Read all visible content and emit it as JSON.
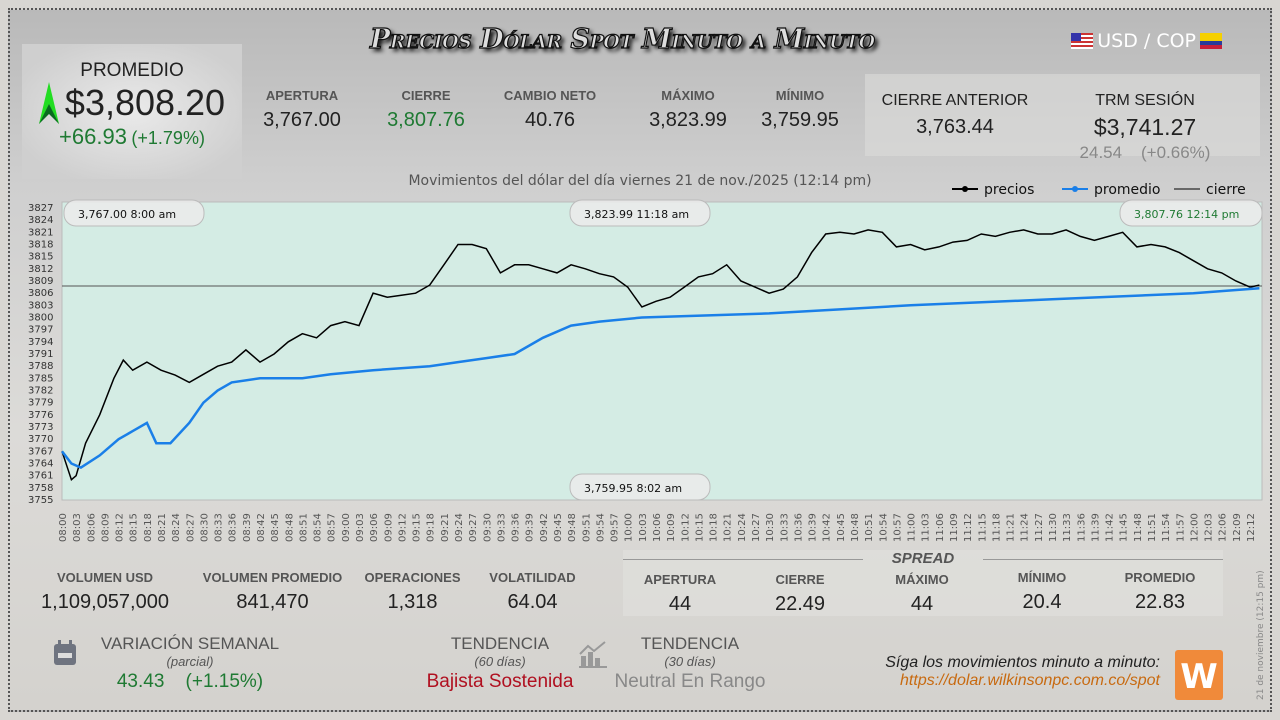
{
  "header": {
    "title": "Precios Dólar Spot Minuto a Minuto",
    "pair": "USD / COP",
    "flag_left": "us-flag-icon",
    "flag_right": "colombia-flag-icon"
  },
  "promedio": {
    "label": "PROMEDIO",
    "value": "$3,808.20",
    "change": "+66.93",
    "change_pct": "(+1.79%)",
    "icon": "arrow-up-icon",
    "color": "#1f7a33"
  },
  "stats": [
    {
      "label": "APERTURA",
      "value": "3,767.00"
    },
    {
      "label": "CIERRE",
      "value": "3,807.76"
    },
    {
      "label": "CAMBIO NETO",
      "value": "40.76"
    },
    {
      "label": "MÁXIMO",
      "value": "3,823.99"
    },
    {
      "label": "MÍNIMO",
      "value": "3,759.95"
    }
  ],
  "cierre_anterior": {
    "label": "CIERRE ANTERIOR",
    "value": "3,763.44"
  },
  "trm": {
    "label": "TRM SESIÓN",
    "value": "$3,741.27",
    "change": "24.54",
    "change_pct": "(+0.66%)"
  },
  "chart_data": {
    "type": "line",
    "subtitle": "Movimientos del dólar del día viernes 21 de nov./2025 (12:14 pm)",
    "legend": [
      "precios",
      "promedio",
      "cierre"
    ],
    "legend_position": "top-right",
    "colors": {
      "precios": "#000000",
      "promedio": "#1a7fe8",
      "cierre": "#000000",
      "fill": "#d4ece4"
    },
    "ylim": [
      3755,
      3827
    ],
    "yticks": [
      3755,
      3758,
      3761,
      3764,
      3767,
      3770,
      3773,
      3776,
      3779,
      3782,
      3785,
      3788,
      3791,
      3794,
      3797,
      3800,
      3803,
      3806,
      3809,
      3812,
      3815,
      3818,
      3821,
      3824,
      3827
    ],
    "xlim": [
      "08:00",
      "12:14"
    ],
    "series": [
      {
        "name": "precios",
        "points": [
          [
            "08:00",
            3767
          ],
          [
            "08:02",
            3760
          ],
          [
            "08:03",
            3761
          ],
          [
            "08:05",
            3769
          ],
          [
            "08:08",
            3776
          ],
          [
            "08:11",
            3785
          ],
          [
            "08:13",
            3789.5
          ],
          [
            "08:15",
            3787
          ],
          [
            "08:18",
            3789
          ],
          [
            "08:21",
            3787
          ],
          [
            "08:24",
            3785.8
          ],
          [
            "08:27",
            3784
          ],
          [
            "08:30",
            3786
          ],
          [
            "08:33",
            3788
          ],
          [
            "08:36",
            3789
          ],
          [
            "08:39",
            3792
          ],
          [
            "08:42",
            3789
          ],
          [
            "08:45",
            3791
          ],
          [
            "08:48",
            3794
          ],
          [
            "08:51",
            3796
          ],
          [
            "08:54",
            3795
          ],
          [
            "08:57",
            3798
          ],
          [
            "09:00",
            3799
          ],
          [
            "09:03",
            3798
          ],
          [
            "09:06",
            3806
          ],
          [
            "09:09",
            3805
          ],
          [
            "09:12",
            3805.5
          ],
          [
            "09:15",
            3806
          ],
          [
            "09:18",
            3808
          ],
          [
            "09:21",
            3813
          ],
          [
            "09:24",
            3818
          ],
          [
            "09:27",
            3818
          ],
          [
            "09:30",
            3817
          ],
          [
            "09:33",
            3811
          ],
          [
            "09:36",
            3813
          ],
          [
            "09:39",
            3813
          ],
          [
            "09:42",
            3812
          ],
          [
            "09:45",
            3811
          ],
          [
            "09:48",
            3813
          ],
          [
            "09:51",
            3812
          ],
          [
            "09:54",
            3810.8
          ],
          [
            "09:57",
            3810
          ],
          [
            "10:00",
            3807.5
          ],
          [
            "10:03",
            3802.6
          ],
          [
            "10:06",
            3804
          ],
          [
            "10:09",
            3805
          ],
          [
            "10:12",
            3807.5
          ],
          [
            "10:15",
            3810
          ],
          [
            "10:18",
            3810.8
          ],
          [
            "10:21",
            3813
          ],
          [
            "10:24",
            3809
          ],
          [
            "10:27",
            3807.5
          ],
          [
            "10:30",
            3806
          ],
          [
            "10:33",
            3807
          ],
          [
            "10:36",
            3810
          ],
          [
            "10:39",
            3816
          ],
          [
            "10:42",
            3820.6
          ],
          [
            "10:45",
            3821
          ],
          [
            "10:48",
            3820.6
          ],
          [
            "10:51",
            3821.6
          ],
          [
            "10:54",
            3821
          ],
          [
            "10:57",
            3817.4
          ],
          [
            "11:00",
            3818
          ],
          [
            "11:03",
            3816.7
          ],
          [
            "11:06",
            3817.4
          ],
          [
            "11:09",
            3818.6
          ],
          [
            "11:12",
            3819
          ],
          [
            "11:15",
            3820.6
          ],
          [
            "11:18",
            3820
          ],
          [
            "11:21",
            3821
          ],
          [
            "11:24",
            3821.6
          ],
          [
            "11:27",
            3820.6
          ],
          [
            "11:30",
            3820.6
          ],
          [
            "11:33",
            3821.6
          ],
          [
            "11:36",
            3820
          ],
          [
            "11:39",
            3819
          ],
          [
            "11:42",
            3820
          ],
          [
            "11:45",
            3821
          ],
          [
            "11:48",
            3817.4
          ],
          [
            "11:51",
            3818
          ],
          [
            "11:54",
            3817.4
          ],
          [
            "11:57",
            3816
          ],
          [
            "12:00",
            3814
          ],
          [
            "12:03",
            3812
          ],
          [
            "12:06",
            3811
          ],
          [
            "12:09",
            3809
          ],
          [
            "12:12",
            3807.5
          ],
          [
            "12:14",
            3808
          ]
        ]
      },
      {
        "name": "promedio",
        "points": [
          [
            "08:00",
            3767
          ],
          [
            "08:02",
            3764
          ],
          [
            "08:04",
            3763
          ],
          [
            "08:08",
            3766
          ],
          [
            "08:12",
            3770
          ],
          [
            "08:15",
            3772
          ],
          [
            "08:18",
            3774
          ],
          [
            "08:20",
            3769
          ],
          [
            "08:23",
            3769
          ],
          [
            "08:27",
            3774
          ],
          [
            "08:30",
            3779
          ],
          [
            "08:33",
            3782
          ],
          [
            "08:36",
            3784
          ],
          [
            "08:42",
            3785
          ],
          [
            "08:51",
            3785
          ],
          [
            "08:57",
            3786
          ],
          [
            "09:06",
            3787
          ],
          [
            "09:18",
            3788
          ],
          [
            "09:24",
            3789
          ],
          [
            "09:30",
            3790
          ],
          [
            "09:36",
            3791
          ],
          [
            "09:42",
            3795
          ],
          [
            "09:48",
            3798
          ],
          [
            "09:54",
            3799
          ],
          [
            "10:03",
            3800
          ],
          [
            "10:30",
            3801
          ],
          [
            "10:45",
            3802
          ],
          [
            "11:00",
            3803
          ],
          [
            "11:30",
            3804.5
          ],
          [
            "12:00",
            3806
          ],
          [
            "12:14",
            3807.2
          ]
        ]
      },
      {
        "name": "cierre",
        "value": 3807.76
      }
    ],
    "annotations": [
      {
        "value": "3,767.00",
        "time": "8:00 am"
      },
      {
        "value": "3,823.99",
        "time": "11:18 am"
      },
      {
        "value": "3,807.76",
        "time": "12:14 pm"
      },
      {
        "value": "3,759.95",
        "time": "8:02 am"
      }
    ]
  },
  "volume": [
    {
      "label": "VOLUMEN USD",
      "value": "1,109,057,000"
    },
    {
      "label": "VOLUMEN PROMEDIO",
      "value": "841,470"
    },
    {
      "label": "OPERACIONES",
      "value": "1,318"
    },
    {
      "label": "VOLATILIDAD",
      "value": "64.04"
    }
  ],
  "spread": {
    "title": "SPREAD",
    "items": [
      {
        "label": "APERTURA",
        "value": "44"
      },
      {
        "label": "CIERRE",
        "value": "22.49"
      },
      {
        "label": "MÁXIMO",
        "value": "44"
      },
      {
        "label": "MÍNIMO",
        "value": "20.4"
      },
      {
        "label": "PROMEDIO",
        "value": "22.83"
      }
    ]
  },
  "semanal": {
    "label": "VARIACIÓN SEMANAL",
    "sub": "(parcial)",
    "value": "43.43",
    "pct": "(+1.15%)",
    "icon": "calendar-icon"
  },
  "tendencia60": {
    "label": "TENDENCIA",
    "sub": "(60 días)",
    "value": "Bajista Sostenida",
    "color": "#b01020"
  },
  "tendencia30": {
    "label": "TENDENCIA",
    "sub": "(30 días)",
    "value": "Neutral En Rango",
    "icon": "trend-chart-icon"
  },
  "footer": {
    "follow": "Síga los movimientos minuto a minuto:",
    "url": "https://dolar.wilkinsonpc.com.co/spot",
    "stamp": "21 de noviembre (12:15 pm)",
    "logo": "W"
  }
}
